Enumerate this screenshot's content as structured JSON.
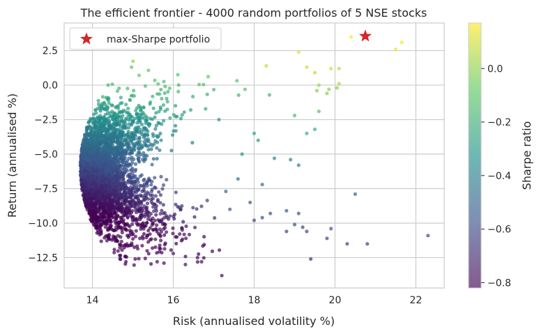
{
  "chart_data": {
    "type": "scatter",
    "title": "The efficient frontier - 4000 random portfolios of 5 NSE stocks",
    "xlabel": "Risk (annualised volatility %)",
    "ylabel": "Return (annualised %)",
    "xlim": [
      13.3,
      22.7
    ],
    "ylim": [
      -14.7,
      4.5
    ],
    "x_ticks": [
      14,
      16,
      18,
      20,
      22
    ],
    "y_ticks": [
      2.5,
      0.0,
      -2.5,
      -5.0,
      -7.5,
      -10.0,
      -12.5
    ],
    "x_tick_labels": [
      "14",
      "16",
      "18",
      "20",
      "22"
    ],
    "y_tick_labels": [
      "2.5",
      "0.0",
      "−2.5",
      "−5.0",
      "−7.5",
      "−10.0",
      "−12.5"
    ],
    "grid": true,
    "legend_position": "top-left",
    "legend": [
      {
        "label": "max-Sharpe portfolio",
        "marker": "star",
        "color": "#d62728"
      }
    ],
    "max_sharpe": {
      "x": 20.75,
      "y": 3.55
    },
    "colorbar": {
      "label": "Sharpe ratio",
      "range": [
        -0.82,
        0.17
      ],
      "ticks": [
        0.0,
        -0.2,
        -0.4,
        -0.6,
        -0.8
      ],
      "tick_labels": [
        "0.0",
        "−0.2",
        "−0.4",
        "−0.6",
        "−0.8"
      ],
      "colormap": "viridis"
    },
    "outlier_points": [
      [
        20.4,
        3.5,
        0.16
      ],
      [
        21.5,
        2.6,
        0.15
      ],
      [
        21.65,
        3.1,
        0.16
      ],
      [
        19.1,
        2.4,
        0.12
      ],
      [
        18.3,
        1.4,
        0.08
      ],
      [
        19.5,
        0.9,
        0.07
      ],
      [
        19.9,
        1.2,
        0.1
      ],
      [
        19.3,
        1.3,
        0.09
      ],
      [
        20.1,
        1.2,
        0.08
      ],
      [
        20.1,
        0.1,
        0.04
      ],
      [
        19.6,
        0.0,
        0.02
      ],
      [
        19.8,
        -0.6,
        -0.02
      ],
      [
        19.55,
        -0.4,
        -0.02
      ],
      [
        19.6,
        -1.9,
        -0.12
      ],
      [
        19.0,
        -2.2,
        -0.15
      ],
      [
        19.5,
        -3.2,
        -0.2
      ],
      [
        19.85,
        -0.3,
        0.0
      ],
      [
        20.05,
        -0.2,
        -0.01
      ],
      [
        19.3,
        -3.5,
        -0.22
      ],
      [
        20.5,
        -7.9,
        -0.49
      ],
      [
        22.3,
        -10.9,
        -0.6
      ],
      [
        20.8,
        -11.5,
        -0.62
      ],
      [
        20.3,
        -11.5,
        -0.62
      ],
      [
        19.9,
        -10.4,
        -0.58
      ],
      [
        19.8,
        -11.1,
        -0.61
      ],
      [
        19.2,
        -10.3,
        -0.6
      ],
      [
        18.8,
        -9.1,
        -0.55
      ],
      [
        18.8,
        -10.6,
        -0.6
      ],
      [
        19.4,
        -12.6,
        -0.68
      ],
      [
        19.1,
        -9.3,
        -0.56
      ],
      [
        19.3,
        -10.6,
        -0.6
      ],
      [
        18.4,
        -9.3,
        -0.56
      ],
      [
        18.0,
        -9.8,
        -0.6
      ],
      [
        18.2,
        -9.6,
        -0.58
      ],
      [
        19.0,
        -10.1,
        -0.6
      ],
      [
        18.9,
        -5.4,
        -0.36
      ],
      [
        19.1,
        -5.8,
        -0.38
      ],
      [
        18.5,
        -5.3,
        -0.35
      ],
      [
        18.1,
        -4.0,
        -0.28
      ],
      [
        18.0,
        -3.5,
        -0.26
      ],
      [
        17.2,
        -13.8,
        -0.8
      ],
      [
        16.6,
        -12.5,
        -0.77
      ],
      [
        16.3,
        -13.0,
        -0.77
      ],
      [
        18.2,
        -7.2,
        -0.46
      ],
      [
        17.3,
        -7.7,
        -0.47
      ],
      [
        17.6,
        -6.8,
        -0.42
      ],
      [
        17.9,
        -8.5,
        -0.52
      ],
      [
        17.4,
        -9.0,
        -0.55
      ],
      [
        16.7,
        -12.8,
        -0.79
      ],
      [
        16.0,
        -12.2,
        -0.75
      ],
      [
        15.6,
        -12.8,
        -0.8
      ],
      [
        17.7,
        -5.0,
        -0.32
      ]
    ]
  }
}
